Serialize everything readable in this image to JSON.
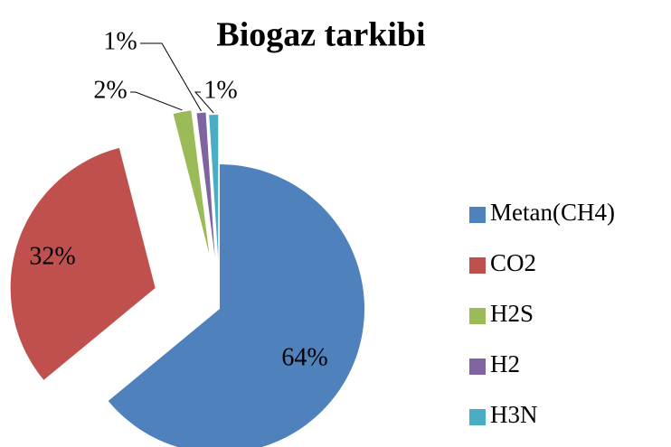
{
  "chart_data": {
    "type": "pie",
    "title": "Biogaz tarkibi",
    "categories": [
      "Metan(CH4)",
      "CO2",
      "H2S",
      "H2",
      "H3N"
    ],
    "values": [
      64,
      32,
      2,
      1,
      1
    ],
    "value_labels": [
      "64%",
      "32%",
      "2%",
      "1%",
      "1%"
    ],
    "colors": [
      "#4f81bd",
      "#c0504d",
      "#9bbb59",
      "#8064a2",
      "#4bacc6"
    ],
    "legend": "right"
  }
}
